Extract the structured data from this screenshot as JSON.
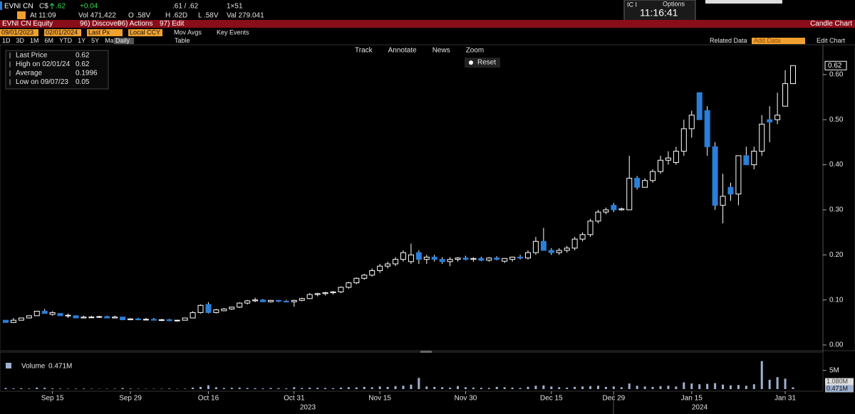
{
  "header": {
    "ticker": "EVNI CN",
    "currency": "C$",
    "last": ".62",
    "change": "+0.04",
    "bid_ask": ".61 / .62",
    "size": "1×51",
    "time": "At 11:09",
    "vol": "Vol 471,422",
    "open": "O .58V",
    "high": "H .62D",
    "low": "L .58V",
    "val": "Val 279.041"
  },
  "clock": {
    "tab": "IC I",
    "options": "Options",
    "time": "11:16:41"
  },
  "menu": {
    "security": "EVNI CN Equity",
    "discover": "96) Discover",
    "actions": "96) Actions",
    "edit": "97) Edit",
    "view": "Candle Chart"
  },
  "controls": {
    "start": "09/01/2023",
    "end": "02/01/2024",
    "field": "Last Px",
    "currency": "Local CCY",
    "mov_avgs": "Mov Avgs",
    "key_events": "Key Events"
  },
  "periods": {
    "items": [
      "1D",
      "3D",
      "1M",
      "6M",
      "YTD",
      "1Y",
      "5Y",
      "Max"
    ],
    "frequency": "Daily",
    "table": "Table",
    "related": "Related Data",
    "add": "Add Data",
    "edit_chart": "Edit Chart"
  },
  "toolbar": {
    "items": [
      "Track",
      "Annotate",
      "News",
      "Zoom"
    ],
    "reset": "Reset"
  },
  "legend": {
    "rows": [
      {
        "label": "Last Price",
        "value": 0.62
      },
      {
        "label": "High on 02/01/24",
        "value": 0.62
      },
      {
        "label": "Average",
        "value": 0.1996
      },
      {
        "label": "Low on 09/07/23",
        "value": 0.05
      }
    ]
  },
  "chart_data": {
    "type": "candlestick",
    "categories": [
      null,
      null,
      null,
      null,
      null,
      null,
      "Sep 15",
      null,
      null,
      null,
      null,
      null,
      null,
      null,
      null,
      null,
      "Sep 29",
      null,
      null,
      null,
      null,
      null,
      null,
      null,
      null,
      null,
      "Oct 16",
      null,
      null,
      null,
      null,
      null,
      null,
      null,
      null,
      null,
      null,
      "Oct 31",
      null,
      null,
      null,
      null,
      null,
      null,
      null,
      null,
      null,
      null,
      "Nov 15",
      null,
      null,
      null,
      null,
      null,
      null,
      null,
      null,
      null,
      null,
      "Nov 30",
      null,
      null,
      null,
      null,
      null,
      null,
      null,
      null,
      null,
      null,
      "Dec 15",
      null,
      null,
      null,
      null,
      null,
      null,
      null,
      "Dec 29",
      null,
      null,
      null,
      null,
      null,
      null,
      null,
      null,
      null,
      "Jan 15",
      null,
      null,
      null,
      null,
      null,
      null,
      null,
      null,
      null,
      null,
      null,
      "Jan 31",
      null
    ],
    "x_groups": [
      "2023",
      "2024"
    ],
    "open": [
      0.055,
      0.05,
      0.055,
      0.06,
      0.065,
      0.075,
      0.068,
      0.07,
      0.065,
      0.065,
      0.06,
      0.062,
      0.062,
      0.063,
      0.06,
      0.062,
      0.056,
      0.058,
      0.056,
      0.057,
      0.055,
      0.056,
      0.054,
      0.055,
      0.06,
      0.072,
      0.09,
      0.072,
      0.076,
      0.08,
      0.084,
      0.093,
      0.098,
      0.1,
      0.096,
      0.099,
      0.097,
      0.096,
      0.099,
      0.103,
      0.112,
      0.114,
      0.116,
      0.118,
      0.128,
      0.138,
      0.148,
      0.155,
      0.165,
      0.175,
      0.18,
      0.19,
      0.185,
      0.205,
      0.19,
      0.195,
      0.19,
      0.185,
      0.19,
      0.193,
      0.19,
      0.192,
      0.188,
      0.193,
      0.186,
      0.19,
      0.195,
      0.193,
      0.205,
      0.23,
      0.21,
      0.205,
      0.21,
      0.215,
      0.235,
      0.245,
      0.275,
      0.295,
      0.31,
      0.3,
      0.3,
      0.37,
      0.35,
      0.365,
      0.385,
      0.41,
      0.405,
      0.43,
      0.48,
      0.56,
      0.52,
      0.44,
      0.31,
      0.35,
      0.335,
      0.42,
      0.4,
      0.43,
      0.5,
      0.5,
      0.53,
      0.58
    ],
    "high": [
      0.055,
      0.06,
      0.06,
      0.065,
      0.075,
      0.08,
      0.075,
      0.07,
      0.07,
      0.065,
      0.065,
      0.065,
      0.065,
      0.065,
      0.065,
      0.062,
      0.06,
      0.06,
      0.06,
      0.06,
      0.058,
      0.058,
      0.056,
      0.06,
      0.075,
      0.09,
      0.095,
      0.08,
      0.082,
      0.085,
      0.095,
      0.1,
      0.105,
      0.102,
      0.1,
      0.1,
      0.1,
      0.1,
      0.105,
      0.115,
      0.116,
      0.118,
      0.12,
      0.13,
      0.14,
      0.15,
      0.158,
      0.17,
      0.18,
      0.185,
      0.195,
      0.21,
      0.225,
      0.21,
      0.2,
      0.2,
      0.195,
      0.195,
      0.195,
      0.198,
      0.195,
      0.196,
      0.195,
      0.197,
      0.192,
      0.196,
      0.2,
      0.21,
      0.24,
      0.26,
      0.215,
      0.215,
      0.22,
      0.24,
      0.25,
      0.28,
      0.3,
      0.305,
      0.315,
      0.305,
      0.42,
      0.375,
      0.37,
      0.39,
      0.42,
      0.43,
      0.44,
      0.5,
      0.52,
      0.56,
      0.53,
      0.45,
      0.38,
      0.36,
      0.42,
      0.44,
      0.44,
      0.51,
      0.53,
      0.56,
      0.61,
      0.62
    ],
    "low": [
      0.05,
      0.05,
      0.055,
      0.06,
      0.065,
      0.07,
      0.065,
      0.065,
      0.06,
      0.06,
      0.06,
      0.06,
      0.06,
      0.06,
      0.06,
      0.055,
      0.055,
      0.055,
      0.055,
      0.055,
      0.053,
      0.053,
      0.052,
      0.055,
      0.06,
      0.07,
      0.07,
      0.07,
      0.075,
      0.078,
      0.082,
      0.09,
      0.095,
      0.095,
      0.094,
      0.095,
      0.095,
      0.085,
      0.097,
      0.102,
      0.108,
      0.11,
      0.112,
      0.115,
      0.125,
      0.135,
      0.145,
      0.152,
      0.16,
      0.17,
      0.175,
      0.185,
      0.18,
      0.18,
      0.18,
      0.185,
      0.18,
      0.175,
      0.185,
      0.188,
      0.185,
      0.186,
      0.185,
      0.188,
      0.182,
      0.185,
      0.19,
      0.19,
      0.2,
      0.21,
      0.2,
      0.2,
      0.205,
      0.21,
      0.23,
      0.24,
      0.27,
      0.29,
      0.295,
      0.298,
      0.3,
      0.345,
      0.35,
      0.36,
      0.38,
      0.4,
      0.4,
      0.42,
      0.46,
      0.5,
      0.42,
      0.3,
      0.27,
      0.32,
      0.31,
      0.4,
      0.39,
      0.42,
      0.45,
      0.49,
      0.53,
      0.58
    ],
    "close": [
      0.05,
      0.055,
      0.06,
      0.065,
      0.075,
      0.07,
      0.072,
      0.065,
      0.066,
      0.06,
      0.062,
      0.062,
      0.063,
      0.06,
      0.062,
      0.056,
      0.058,
      0.056,
      0.057,
      0.055,
      0.056,
      0.054,
      0.055,
      0.06,
      0.072,
      0.088,
      0.072,
      0.078,
      0.08,
      0.084,
      0.093,
      0.098,
      0.1,
      0.096,
      0.099,
      0.097,
      0.096,
      0.099,
      0.103,
      0.112,
      0.114,
      0.116,
      0.118,
      0.128,
      0.138,
      0.148,
      0.155,
      0.165,
      0.175,
      0.18,
      0.19,
      0.205,
      0.2,
      0.19,
      0.195,
      0.19,
      0.185,
      0.19,
      0.193,
      0.19,
      0.192,
      0.188,
      0.193,
      0.19,
      0.192,
      0.195,
      0.193,
      0.205,
      0.23,
      0.21,
      0.205,
      0.21,
      0.215,
      0.235,
      0.245,
      0.275,
      0.295,
      0.3,
      0.3,
      0.302,
      0.37,
      0.35,
      0.365,
      0.385,
      0.41,
      0.415,
      0.43,
      0.48,
      0.51,
      0.5,
      0.44,
      0.31,
      0.33,
      0.335,
      0.42,
      0.4,
      0.43,
      0.49,
      0.495,
      0.51,
      0.58,
      0.62
    ],
    "up_color": "#ffffff",
    "down_color": "#2a7fd8",
    "ylim": [
      0,
      0.663
    ],
    "yticks": [
      {
        "value": 0,
        "label": "0.00"
      },
      {
        "value": 0.1,
        "label": "0.10"
      },
      {
        "value": 0.2,
        "label": "0.20"
      },
      {
        "value": 0.3,
        "label": "0.30"
      },
      {
        "value": 0.4,
        "label": "0.40"
      },
      {
        "value": 0.5,
        "label": "0.50"
      },
      {
        "value": 0.6,
        "label": "0.60"
      }
    ],
    "last_label": 0.62,
    "volume_title": "Volume",
    "volume_value_label": "0.471M",
    "volume_ma_label": "1.080M",
    "volume": [
      300000,
      200000,
      250000,
      150000,
      400000,
      350000,
      200000,
      150000,
      100000,
      120000,
      150000,
      100000,
      80000,
      90000,
      120000,
      300000,
      150000,
      100000,
      80000,
      90000,
      100000,
      150000,
      80000,
      120000,
      400000,
      600000,
      1000000,
      500000,
      300000,
      350000,
      400000,
      300000,
      250000,
      200000,
      300000,
      250000,
      200000,
      500000,
      300000,
      400000,
      350000,
      300000,
      250000,
      400000,
      500000,
      450000,
      600000,
      500000,
      700000,
      600000,
      800000,
      900000,
      1200000,
      3000000,
      700000,
      600000,
      500000,
      400000,
      800000,
      500000,
      400000,
      350000,
      300000,
      600000,
      500000,
      400000,
      300000,
      600000,
      900000,
      1000000,
      700000,
      500000,
      400000,
      600000,
      700000,
      800000,
      900000,
      600000,
      700000,
      500000,
      1500000,
      900000,
      700000,
      600000,
      800000,
      900000,
      700000,
      1800000,
      1500000,
      1300000,
      1400000,
      1600000,
      1200000,
      1000000,
      1100000,
      900000,
      1300000,
      7500000,
      2500000,
      3200000,
      2800000,
      471422
    ],
    "volume_color": "#9fb0d0",
    "vlim": [
      0,
      8000000
    ],
    "vticks": [
      {
        "value": 5000000,
        "label": "5M"
      }
    ]
  }
}
